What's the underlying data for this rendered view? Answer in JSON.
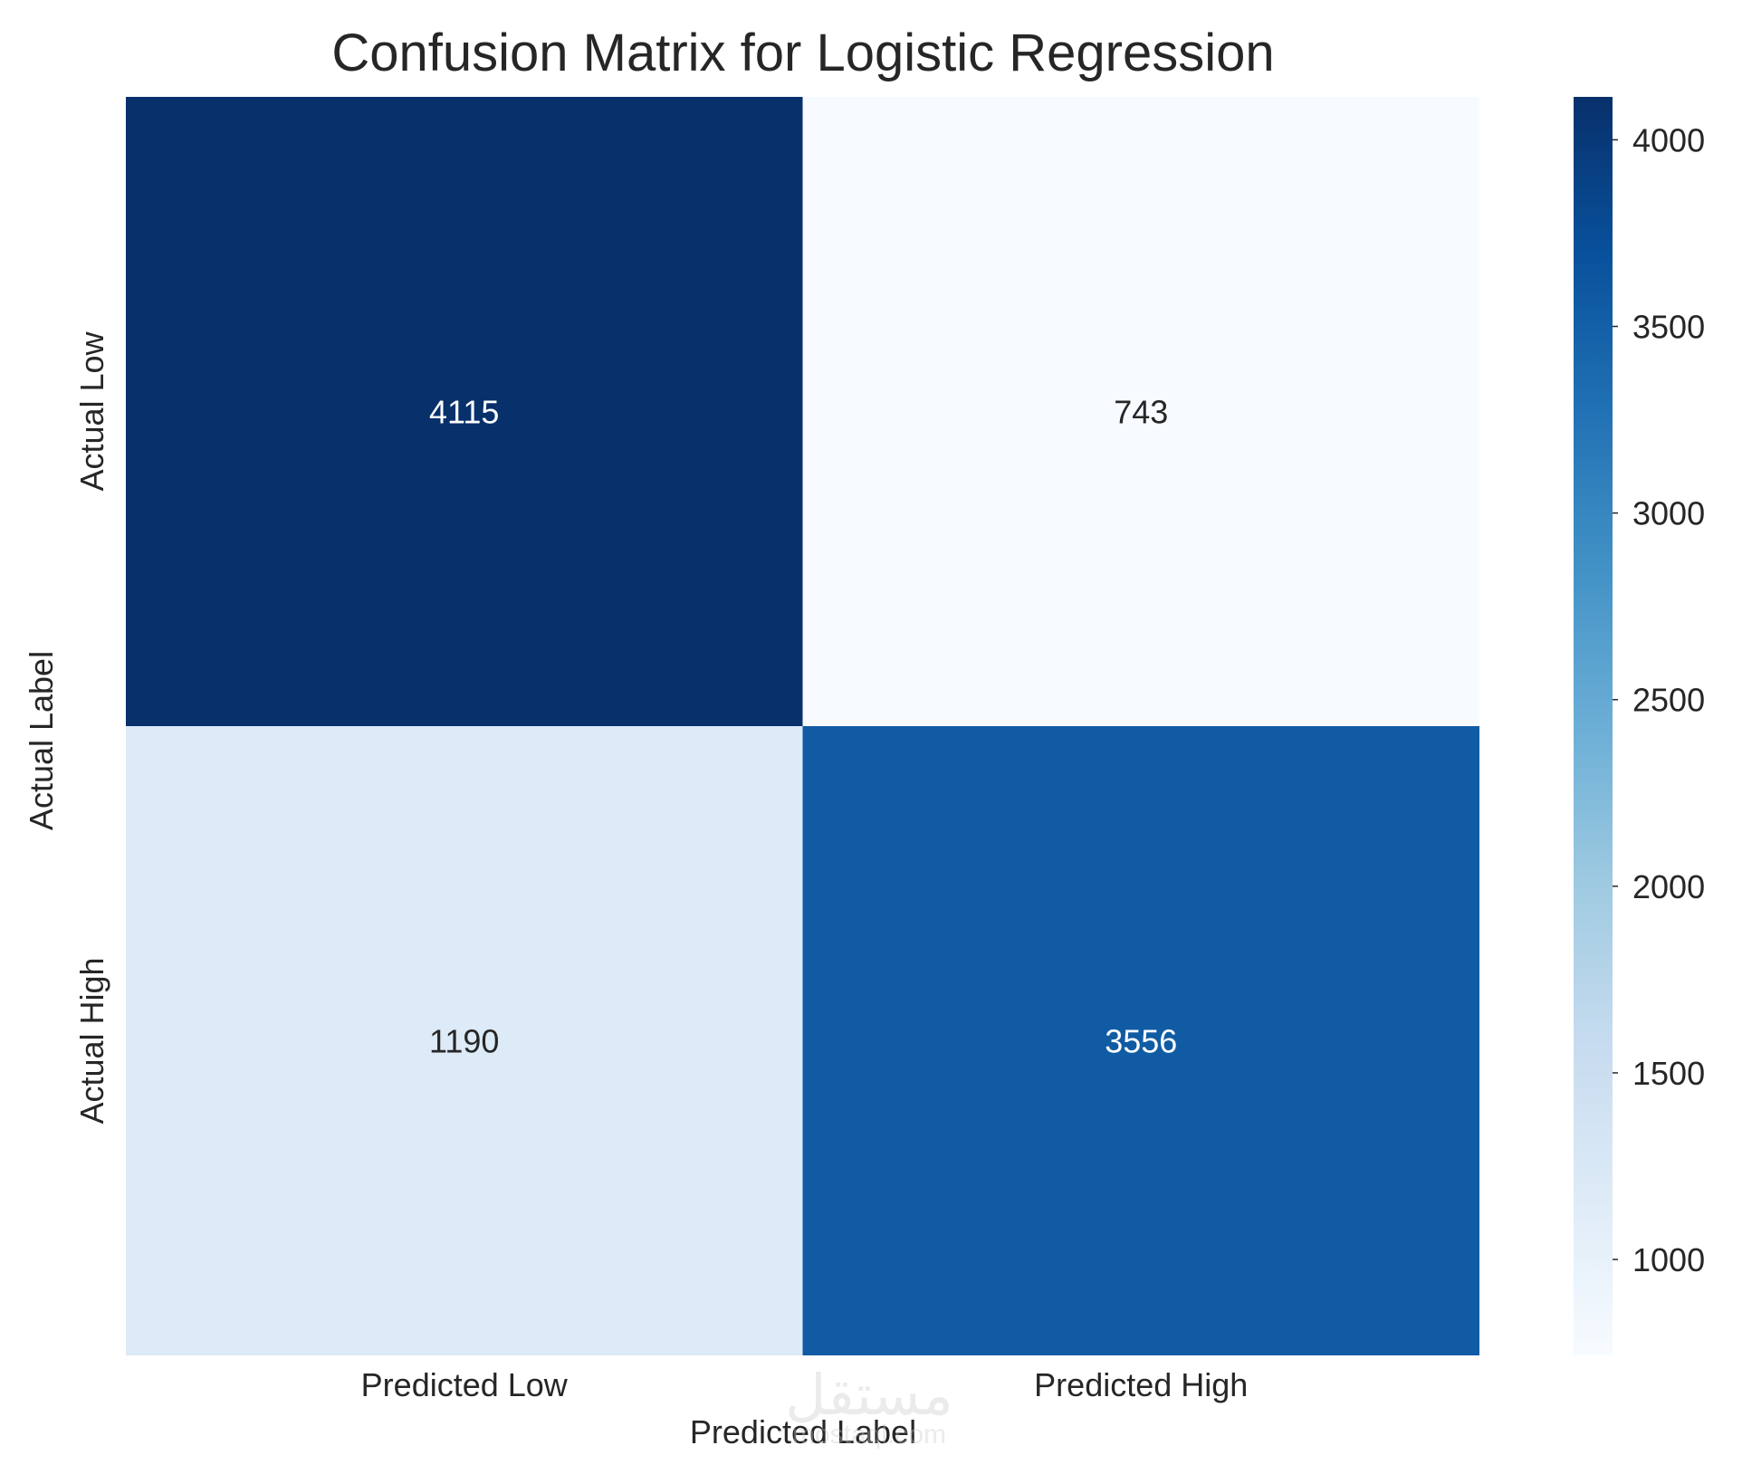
{
  "chart_data": {
    "type": "heatmap",
    "title": "Confusion Matrix for Logistic Regression",
    "xlabel": "Predicted Label",
    "ylabel": "Actual Label",
    "x_categories": [
      "Predicted Low",
      "Predicted High"
    ],
    "y_categories": [
      "Actual Low",
      "Actual High"
    ],
    "values": [
      [
        4115,
        743
      ],
      [
        1190,
        3556
      ]
    ],
    "colormap": "Blues",
    "colorbar": {
      "min": 743,
      "max": 4115,
      "ticks": [
        "1000",
        "1500",
        "2000",
        "2500",
        "3000",
        "3500",
        "4000"
      ],
      "tick_values": [
        1000,
        1500,
        2000,
        2500,
        3000,
        3500,
        4000
      ]
    },
    "grid": false
  },
  "watermark": {
    "text": "مستقل",
    "subtext": "mostaql.com"
  }
}
